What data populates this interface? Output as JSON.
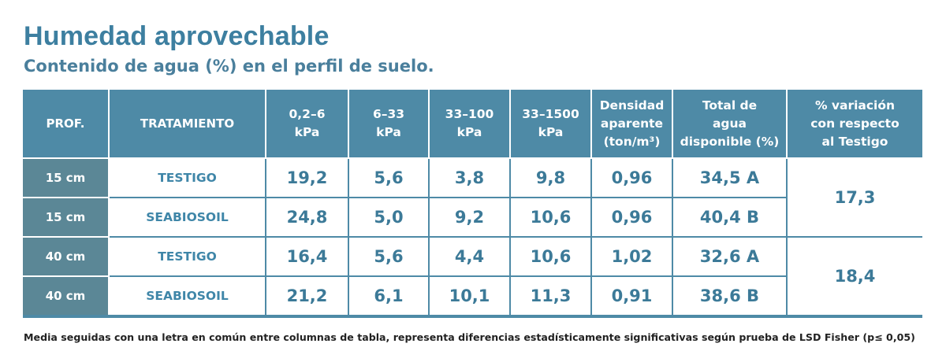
{
  "title": "Humedad aprovechable",
  "subtitle": "Contenido de agua (%) en el perfil de suelo.",
  "footnote": "Media seguidas con una letra en común entre columnas de tabla, representa diferencias estadísticamente significativas según prueba de LSD Fisher (p≤ 0,05)",
  "colors": {
    "title": "#3d7fa0",
    "header_bg": "#4e8aa6",
    "prof_bg": "#5b8796",
    "value_text": "#3c7a98"
  },
  "chart_data": {
    "type": "table",
    "columns": [
      [
        "PROF."
      ],
      [
        "TRATAMIENTO"
      ],
      [
        "0,2–6",
        "kPa"
      ],
      [
        "6–33",
        "kPa"
      ],
      [
        "33–100",
        "kPa"
      ],
      [
        "33–1500",
        "kPa"
      ],
      [
        "Densidad",
        "aparente",
        "(ton/m³)"
      ],
      [
        "Total de",
        "agua",
        "disponible (%)"
      ],
      [
        "% variación",
        "con respecto",
        "al Testigo"
      ]
    ],
    "rows": [
      {
        "prof": "15 cm",
        "tratamiento": "TESTIGO",
        "values": [
          "19,2",
          "5,6",
          "3,8",
          "9,8",
          "0,96",
          "34,5 A"
        ]
      },
      {
        "prof": "15 cm",
        "tratamiento": "SEABIOSOIL",
        "values": [
          "24,8",
          "5,0",
          "9,2",
          "10,6",
          "0,96",
          "40,4 B"
        ]
      },
      {
        "prof": "40 cm",
        "tratamiento": "TESTIGO",
        "values": [
          "16,4",
          "5,6",
          "4,4",
          "10,6",
          "1,02",
          "32,6 A"
        ]
      },
      {
        "prof": "40 cm",
        "tratamiento": "SEABIOSOIL",
        "values": [
          "21,2",
          "6,1",
          "10,1",
          "11,3",
          "0,91",
          "38,6 B"
        ]
      }
    ],
    "variation": [
      "17,3",
      "18,4"
    ]
  }
}
